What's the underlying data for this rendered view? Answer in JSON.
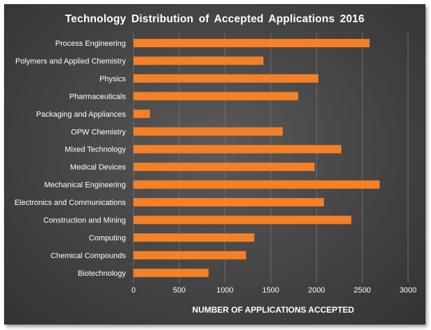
{
  "chart_data": {
    "type": "bar",
    "orientation": "horizontal",
    "title": "Technology  Distribution  of  Accepted  Applications  2016",
    "xlabel": "NUMBER OF APPLICATIONS ACCEPTED",
    "ylabel": "",
    "xlim": [
      0,
      3000
    ],
    "xticks": [
      0,
      500,
      1000,
      1500,
      2000,
      2500,
      3000
    ],
    "grid": true,
    "legend": "none",
    "bar_color": "#F58025",
    "categories": [
      "Process Engineering",
      "Polymers and Applied Chemistry",
      "Physics",
      "Pharmaceuticals",
      "Packaging and Appliances",
      "OPW Chemistry",
      "Mixed Technology",
      "Medical Devices",
      "Mechanical Engineering",
      "Electronics and Communications",
      "Construction and Mining",
      "Computing",
      "Chemical Compounds",
      "Biotechnology"
    ],
    "values": [
      2580,
      1420,
      2020,
      1800,
      180,
      1630,
      2270,
      1980,
      2690,
      2080,
      2380,
      1320,
      1230,
      820
    ]
  }
}
